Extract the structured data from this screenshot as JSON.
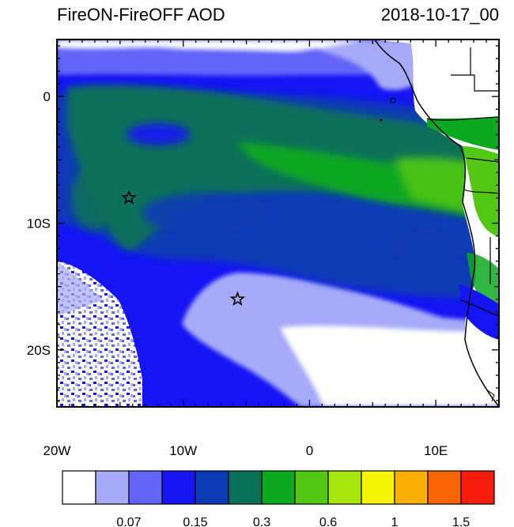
{
  "title": "FireON-FireOFF AOD",
  "date": "2018-10-17_00",
  "map": {
    "lon_range": [
      -20,
      15
    ],
    "lat_range": [
      -24.5,
      4.5
    ],
    "x_ticks": [
      {
        "lon": -20,
        "label": "20W"
      },
      {
        "lon": -10,
        "label": "10W"
      },
      {
        "lon": 0,
        "label": "0"
      },
      {
        "lon": 10,
        "label": "10E"
      }
    ],
    "y_ticks": [
      {
        "lat": 0,
        "label": "0"
      },
      {
        "lat": -10,
        "label": "10S"
      },
      {
        "lat": -20,
        "label": "20S"
      }
    ],
    "markers": [
      {
        "name": "star",
        "lon": -14.3,
        "lat": -8.0
      },
      {
        "name": "star",
        "lon": -5.7,
        "lat": -16.0
      }
    ]
  },
  "colorbar": {
    "colors": [
      "#ffffff",
      "#a6aaf8",
      "#6465f8",
      "#1414f4",
      "#0a3ab4",
      "#09705a",
      "#0da822",
      "#52c814",
      "#a8e40e",
      "#f5f505",
      "#fbaf05",
      "#fb6404",
      "#f81c0e"
    ],
    "labels": [
      {
        "after_box": 2,
        "text": "0.07"
      },
      {
        "after_box": 4,
        "text": "0.15"
      },
      {
        "after_box": 6,
        "text": "0.3"
      },
      {
        "after_box": 8,
        "text": "0.6"
      },
      {
        "after_box": 10,
        "text": "1"
      },
      {
        "after_box": 12,
        "text": "1.5"
      }
    ]
  }
}
